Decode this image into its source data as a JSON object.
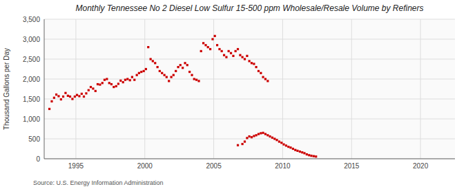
{
  "chart_data": {
    "type": "scatter",
    "title": "Monthly Tennessee No 2 Diesel Low Sulfur 15-500 ppm Wholesale/Resale Volume by Refiners",
    "y_label": "Thousand Gallons per Day",
    "source": "Source: U.S. Energy Information Administration",
    "xlim": [
      1992.7,
      2022.5
    ],
    "xticks": [
      1995,
      2000,
      2005,
      2010,
      2015,
      2020
    ],
    "ylim": [
      0,
      3500
    ],
    "yticks": [
      0,
      500,
      {
        "value": 1000,
        "label": "1,000"
      },
      {
        "value": 1500,
        "label": "1,500"
      },
      {
        "value": 2000,
        "label": "2,000"
      },
      {
        "value": 2500,
        "label": "2,500"
      },
      {
        "value": 3000,
        "label": "3,000"
      },
      {
        "value": 3500,
        "label": "3,500"
      }
    ],
    "grid": true,
    "series": [
      {
        "color": "#cc0000",
        "marker": "square",
        "x": [
          1993.08,
          1993.25,
          1993.42,
          1993.58,
          1993.75,
          1993.92,
          1994.08,
          1994.25,
          1994.42,
          1994.58,
          1994.75,
          1994.92,
          1995.08,
          1995.25,
          1995.42,
          1995.58,
          1995.75,
          1995.92,
          1996.08,
          1996.25,
          1996.42,
          1996.58,
          1996.75,
          1996.92,
          1997.08,
          1997.25,
          1997.42,
          1997.58,
          1997.75,
          1997.92,
          1998.08,
          1998.25,
          1998.42,
          1998.58,
          1998.75,
          1998.92,
          1999.08,
          1999.25,
          1999.42,
          1999.58,
          1999.75,
          1999.92,
          2000.08,
          2000.25,
          2000.42,
          2000.58,
          2000.75,
          2000.92,
          2001.08,
          2001.25,
          2001.42,
          2001.58,
          2001.75,
          2001.92,
          2002.08,
          2002.25,
          2002.42,
          2002.58,
          2002.75,
          2002.92,
          2003.08,
          2003.25,
          2003.42,
          2003.58,
          2003.75,
          2003.92,
          2004.08,
          2004.25,
          2004.42,
          2004.58,
          2004.75,
          2004.92,
          2005.08,
          2005.25,
          2005.42,
          2005.58,
          2005.75,
          2005.92,
          2006.08,
          2006.25,
          2006.42,
          2006.58,
          2006.75,
          2006.92,
          2007.08,
          2007.25,
          2007.42,
          2007.58,
          2007.75,
          2007.92,
          2008.08,
          2008.25,
          2008.42,
          2008.58,
          2008.75,
          2008.92
        ],
        "values": [
          1250,
          1440,
          1530,
          1610,
          1570,
          1490,
          1560,
          1650,
          1580,
          1560,
          1500,
          1560,
          1600,
          1570,
          1630,
          1560,
          1640,
          1720,
          1800,
          1760,
          1700,
          1870,
          1860,
          1900,
          1980,
          2000,
          1900,
          1870,
          1800,
          1820,
          1880,
          1960,
          1920,
          1980,
          2000,
          1970,
          2050,
          1980,
          2100,
          2150,
          2180,
          2200,
          2250,
          2800,
          2500,
          2450,
          2400,
          2300,
          2200,
          2150,
          2100,
          2050,
          1950,
          2050,
          2100,
          2200,
          2300,
          2350,
          2280,
          2400,
          2350,
          2180,
          2100,
          2000,
          1980,
          1950,
          2700,
          2900,
          2850,
          2800,
          2750,
          3000,
          3080,
          2850,
          2750,
          2700,
          2600,
          2550,
          2700,
          2650,
          2580,
          2700,
          2750,
          2600,
          2550,
          2500,
          2580,
          2450,
          2400,
          2380,
          2300,
          2200,
          2150,
          2050,
          2000,
          1950
        ]
      },
      {
        "color": "#cc0000",
        "marker": "square",
        "x": [
          2006.75,
          2007.08,
          2007.25,
          2007.42,
          2007.58,
          2007.75,
          2007.92,
          2008.08,
          2008.25,
          2008.42,
          2008.58,
          2008.75,
          2008.92,
          2009.08,
          2009.25,
          2009.42,
          2009.58,
          2009.75,
          2009.92,
          2010.08,
          2010.25,
          2010.42,
          2010.58,
          2010.75,
          2010.92,
          2011.08,
          2011.25,
          2011.42,
          2011.58,
          2011.75,
          2011.92,
          2012.08,
          2012.25,
          2012.42
        ],
        "values": [
          340,
          370,
          430,
          520,
          560,
          540,
          570,
          590,
          620,
          640,
          650,
          620,
          590,
          560,
          530,
          500,
          470,
          430,
          400,
          360,
          330,
          300,
          280,
          250,
          220,
          200,
          180,
          160,
          140,
          110,
          90,
          75,
          65,
          55
        ]
      }
    ]
  }
}
